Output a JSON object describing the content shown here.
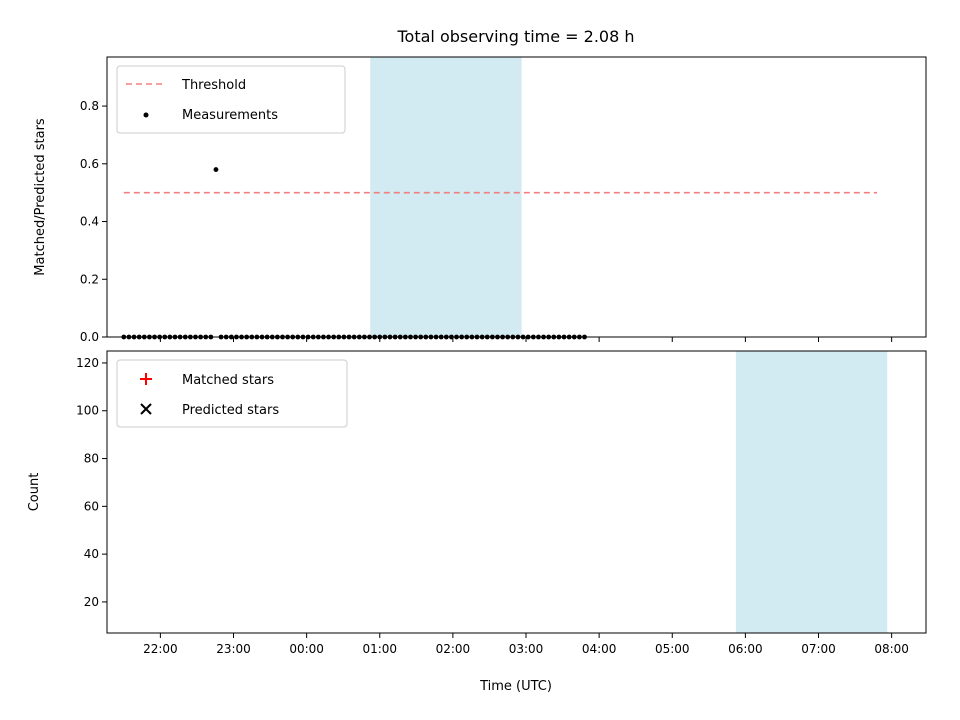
{
  "chart_data": [
    {
      "type": "scatter",
      "title": "Total observing time = 2.08 h",
      "ylabel": "Matched/Predicted stars",
      "xlabel": "",
      "xlim": [
        21.27,
        32.47
      ],
      "ylim": [
        0,
        0.97
      ],
      "yticks": [
        0,
        0.2,
        0.4,
        0.6,
        0.8
      ],
      "ytick_labels": [
        "0.0",
        "0.2",
        "0.4",
        "0.6",
        "0.8"
      ],
      "legend": {
        "position": "top-left",
        "entries": [
          "Threshold",
          "Measurements"
        ]
      },
      "highlight_span": [
        24.87,
        26.94
      ],
      "series": [
        {
          "name": "Threshold",
          "style": "dashed-line",
          "color": "#f08080",
          "x": [
            21.5,
            31.8
          ],
          "y": [
            0.5,
            0.5
          ]
        },
        {
          "name": "Measurements",
          "style": "dot",
          "color": "#000000",
          "x": [
            21.5,
            21.57,
            21.64,
            21.71,
            21.78,
            21.85,
            21.92,
            21.99,
            22.06,
            22.13,
            22.2,
            22.27,
            22.34,
            22.41,
            22.48,
            22.55,
            22.62,
            22.69,
            22.76,
            22.83,
            22.9,
            22.97,
            23.04,
            23.11,
            23.18,
            23.25,
            23.32,
            23.39,
            23.46,
            23.53,
            23.6,
            23.67,
            23.74,
            23.81,
            23.88,
            23.95,
            24.02,
            24.09,
            24.16,
            24.23,
            24.3,
            24.37,
            24.44,
            24.51,
            24.58,
            24.65,
            24.72,
            24.79,
            24.86,
            24.93,
            25.0,
            25.07,
            25.14,
            25.21,
            25.28,
            25.35,
            25.42,
            25.49,
            25.56,
            25.63,
            25.7,
            25.77,
            25.84,
            25.91,
            25.98,
            26.05,
            26.12,
            26.19,
            26.26,
            26.33,
            26.4,
            26.47,
            26.54,
            26.61,
            26.68,
            26.75,
            26.82,
            26.89,
            26.96,
            27.03,
            27.1,
            27.17,
            27.24,
            27.31,
            27.38,
            27.45,
            27.52,
            27.59,
            27.66,
            27.73,
            27.8
          ],
          "y": [
            0.0,
            0.0,
            0.0,
            0.0,
            0.0,
            0.0,
            0.0,
            0.0,
            0.0,
            0.0,
            0.0,
            0.0,
            0.0,
            0.0,
            0.0,
            0.0,
            0.0,
            0.0,
            0.58,
            0.0,
            0.0,
            0.0,
            0.0,
            0.0,
            0.0,
            0.0,
            0.0,
            0.0,
            0.0,
            0.0,
            0.0,
            0.0,
            0.0,
            0.0,
            0.0,
            0.0,
            0.0,
            0.0,
            0.0,
            0.0,
            0.0,
            0.0,
            0.0,
            0.0,
            0.0,
            0.0,
            0.0,
            0.0,
            0.0,
            0.0,
            0.0,
            0.0,
            0.0,
            0.0,
            0.0,
            0.0,
            0.0,
            0.0,
            0.0,
            0.0,
            0.0,
            0.0,
            0.0,
            0.0,
            0.0,
            0.0,
            0.0,
            0.0,
            0.0,
            0.0,
            0.0,
            0.0,
            0.0,
            0.0,
            0.0,
            0.0,
            0.0,
            0.0,
            0.0,
            0.0,
            0.0,
            0.0,
            0.0,
            0.0,
            0.0,
            0.0,
            0.0,
            0.0,
            0.0,
            0.0,
            0.0
          ]
        }
      ]
    },
    {
      "type": "scatter",
      "title": "",
      "xlabel": "Time (UTC)",
      "ylabel": "Count",
      "xlim": [
        21.27,
        32.47
      ],
      "ylim": [
        7,
        125
      ],
      "yticks": [
        20,
        40,
        60,
        80,
        100,
        120
      ],
      "ytick_labels": [
        "20",
        "40",
        "60",
        "80",
        "100",
        "120"
      ],
      "xticks": [
        22,
        23,
        24,
        25,
        26,
        27,
        28,
        29,
        30,
        31,
        32
      ],
      "xtick_labels": [
        "22:00",
        "23:00",
        "00:00",
        "01:00",
        "02:00",
        "03:00",
        "04:00",
        "05:00",
        "06:00",
        "07:00",
        "08:00"
      ],
      "legend": {
        "position": "top-left",
        "entries": [
          "Matched stars",
          "Predicted stars"
        ]
      },
      "highlight_span": [
        29.87,
        31.94
      ],
      "series": [
        {
          "name": "Matched stars",
          "marker": "plus",
          "color": "#ff0000",
          "x": [],
          "y": []
        },
        {
          "name": "Predicted stars",
          "marker": "x",
          "color": "#000000",
          "x": [],
          "y": []
        }
      ]
    }
  ]
}
